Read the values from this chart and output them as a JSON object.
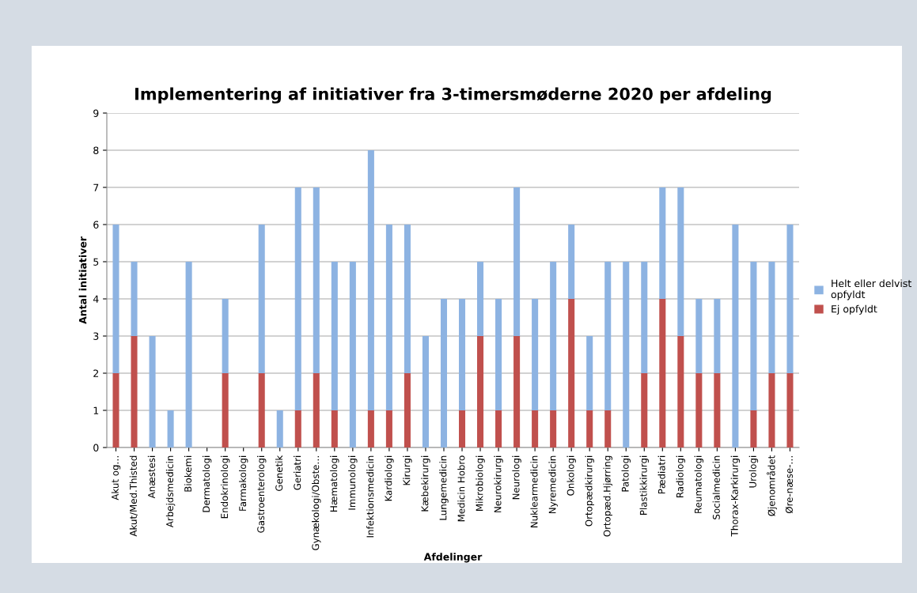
{
  "chart_data": {
    "type": "bar",
    "stacked": true,
    "title": "Implementering af initiativer fra 3-timersmøderne 2020 per afdeling",
    "xlabel": "Afdelinger",
    "ylabel": "Antal initiativer",
    "categories": [
      "Akut og…",
      "Akut/Med.Thisted",
      "Anæstesi",
      "Arbejdsmedicin",
      "Biokemi",
      "Dermatologi",
      "Endokrinologi",
      "Farmakologi",
      "Gastroenterologi",
      "Genetik",
      "Geriatri",
      "Gynækologi/Obste…",
      "Hæmatologi",
      "Immunologi",
      "Infektionsmedicin",
      "Kardiologi",
      "Kirurgi",
      "Kæbekirurgi",
      "Lungemedicin",
      "Medicin Hobro",
      "Mikrobiologi",
      "Neurokirurgi",
      "Neurologi",
      "Nuklearmedicin",
      "Nyremedicin",
      "Onkologi",
      "Ortopædkirurgi",
      "Ortopæd.Hjørring",
      "Patologi",
      "Plastikkirurgi",
      "Pædiatri",
      "Radiologi",
      "Reumatologi",
      "Socialmedicin",
      "Thorax-Karkirurgi",
      "Urologi",
      "Øjenområdet",
      "Øre-næse-…"
    ],
    "series": [
      {
        "name": "Ej opfyldt",
        "color": "#c0504d",
        "values": [
          2,
          3,
          0,
          0,
          0,
          0,
          2,
          0,
          2,
          0,
          1,
          2,
          1,
          0,
          1,
          1,
          2,
          0,
          0,
          1,
          3,
          1,
          3,
          1,
          1,
          4,
          1,
          1,
          0,
          2,
          4,
          3,
          2,
          2,
          0,
          1,
          2,
          2
        ]
      },
      {
        "name": "Helt eller delvist opfyldt",
        "color": "#8db3e2",
        "values": [
          4,
          2,
          3,
          1,
          5,
          0,
          2,
          0,
          4,
          1,
          6,
          5,
          4,
          5,
          7,
          5,
          4,
          3,
          4,
          3,
          2,
          3,
          4,
          3,
          4,
          2,
          2,
          4,
          5,
          3,
          3,
          4,
          2,
          2,
          6,
          4,
          3,
          4
        ]
      }
    ],
    "ylim": [
      0,
      9
    ],
    "yticks": [
      0,
      1,
      2,
      3,
      4,
      5,
      6,
      7,
      8,
      9
    ],
    "grid": "y",
    "legend": "right"
  }
}
